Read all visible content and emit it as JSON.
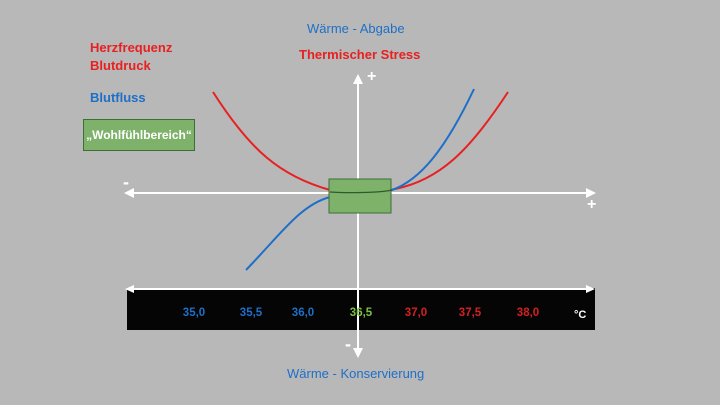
{
  "labels": {
    "top": "Wärme - Abgabe",
    "bottom": "Wärme - Konservierung",
    "stress": "Thermischer Stress",
    "hr": "Herzfrequenz",
    "bp": "Blutdruck",
    "flow": "Blutfluss",
    "comfort": "„Wohlfühlbereich“",
    "unit": "°C",
    "plus_v": "+",
    "minus_v": "-",
    "plus_h": "+",
    "minus_h": "-"
  },
  "scale": {
    "ticks": [
      {
        "label": "35,0",
        "color": "#1e6fc8"
      },
      {
        "label": "35,5",
        "color": "#1e6fc8"
      },
      {
        "label": "36,0",
        "color": "#1e6fc8"
      },
      {
        "label": "36,5",
        "color": "#7bc043"
      },
      {
        "label": "37,0",
        "color": "#d42020"
      },
      {
        "label": "37,5",
        "color": "#d42020"
      },
      {
        "label": "38,0",
        "color": "#d42020"
      }
    ]
  },
  "colors": {
    "red": "#e82020",
    "blue": "#1e6fc8",
    "green_fill": "#7eb26a",
    "green_stroke": "#3d6e35",
    "strip": "#050505",
    "axis": "#ffffff"
  }
}
